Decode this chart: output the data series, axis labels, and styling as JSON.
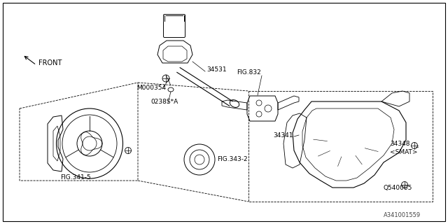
{
  "background_color": "#ffffff",
  "line_color": "#000000",
  "fig_width": 6.4,
  "fig_height": 3.2,
  "dpi": 100,
  "labels": {
    "front": "FRONT",
    "34531": "34531",
    "fig832": "FIG.832",
    "m000354": "M000354",
    "02388a": "0238S*A",
    "34341": "34341",
    "34348": "34348",
    "smat": "<SMAT>",
    "q540005": "Q540005",
    "fig341_5": "FIG.341-5",
    "fig343_2": "FIG.343-2",
    "watermark": "A341001559"
  }
}
